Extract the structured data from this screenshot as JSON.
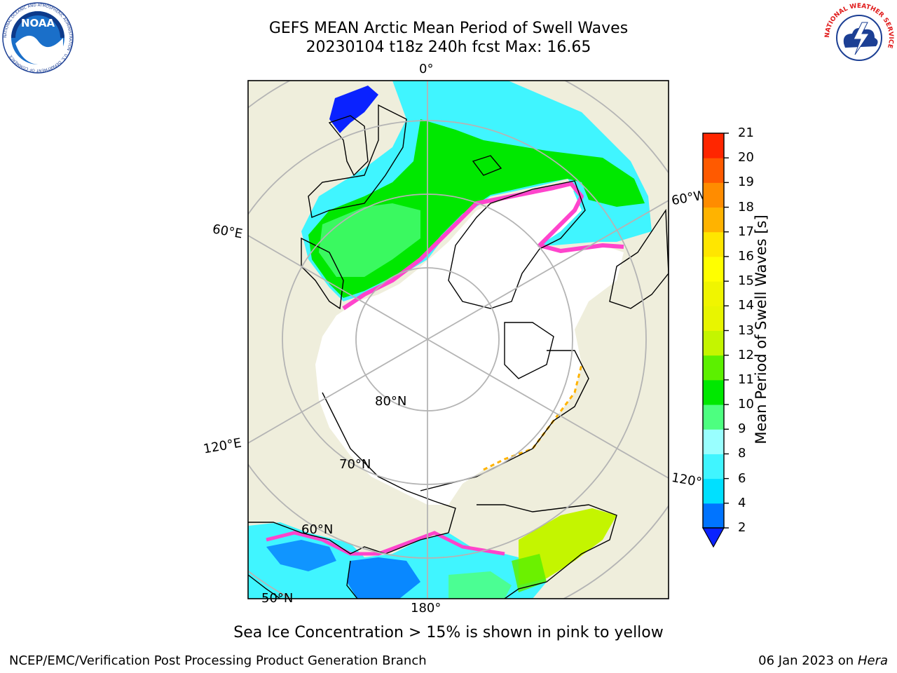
{
  "header": {
    "title_line1": "GEFS MEAN Arctic Mean Period of Swell Waves",
    "title_line2": "20230104 t18z 240h fcst   Max: 16.65"
  },
  "logos": {
    "left": {
      "text": "NOAA",
      "ring_text": "NATIONAL OCEANIC AND ATMOSPHERIC ADMINISTRATION · U.S. DEPARTMENT OF COMMERCE"
    },
    "right": {
      "ring_text": "NATIONAL WEATHER SERVICE"
    }
  },
  "map": {
    "longitude_labels": [
      "0°",
      "60°E",
      "120°E",
      "180°",
      "120°W",
      "60°W"
    ],
    "latitude_labels": [
      "80°N",
      "70°N",
      "60°N",
      "50°N"
    ],
    "colors": {
      "land": "#efeedc",
      "ice": "#ffffff",
      "coast": "#000000",
      "grid": "#b4b4b4"
    }
  },
  "colorbar": {
    "label": "Mean Period of Swell Waves [s]",
    "ticks": [
      "2",
      "4",
      "6",
      "8",
      "9",
      "10",
      "11",
      "12",
      "13",
      "14",
      "15",
      "16",
      "17",
      "18",
      "19",
      "20",
      "21"
    ],
    "colors": [
      "#0074ff",
      "#00e0ff",
      "#40f5ff",
      "#99ffff",
      "#4dff80",
      "#00e800",
      "#5cf000",
      "#c4f500",
      "#e8f500",
      "#f0f500",
      "#ffff00",
      "#ffe600",
      "#ffb300",
      "#ff8c00",
      "#ff5a00",
      "#ff2600"
    ],
    "extend_color": "#0a22ff"
  },
  "note": "Sea Ice Concentration > 15% is shown in pink to yellow",
  "footer": {
    "left": "NCEP/EMC/Verification Post Processing Product Generation Branch",
    "right_prefix": "06 Jan 2023 on ",
    "right_host": "Hera"
  }
}
